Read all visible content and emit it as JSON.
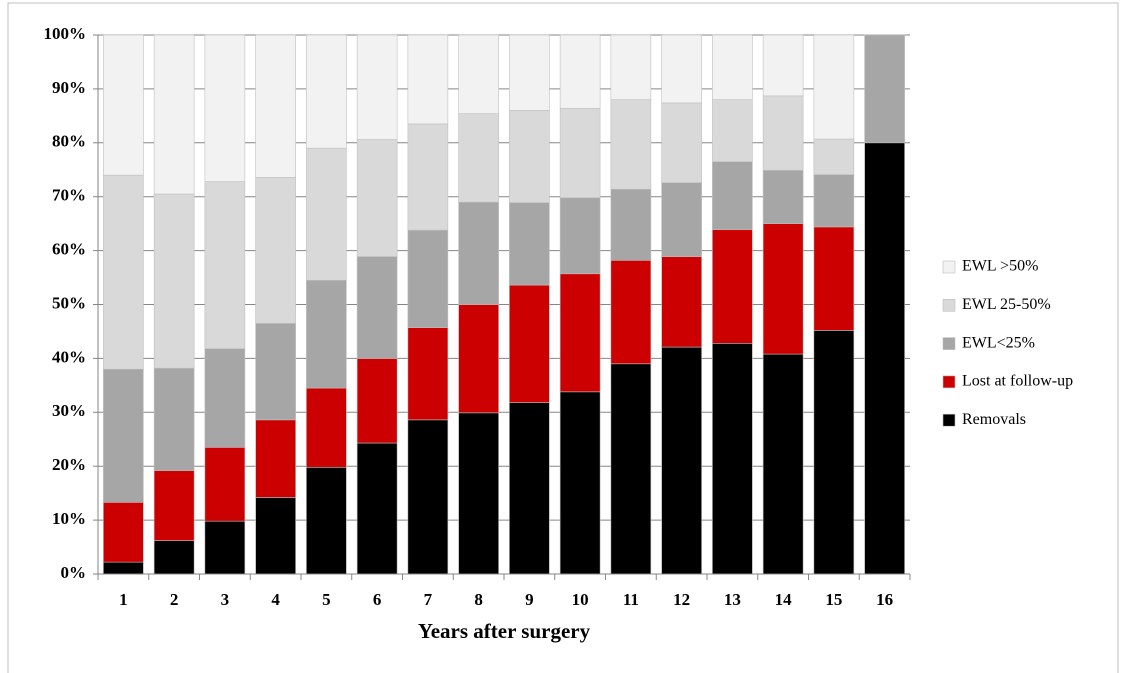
{
  "chart_data": {
    "type": "stacked_bar",
    "x_label": "Years after surgery",
    "categories": [
      "1",
      "2",
      "3",
      "4",
      "5",
      "6",
      "7",
      "8",
      "9",
      "10",
      "11",
      "12",
      "13",
      "14",
      "15",
      "16"
    ],
    "series": [
      {
        "name": "Removals",
        "color": "#000000",
        "values": [
          2.2,
          6.2,
          9.8,
          14.2,
          19.8,
          24.3,
          28.6,
          29.9,
          31.8,
          33.8,
          39,
          42.1,
          42.8,
          40.8,
          45.2,
          80
        ]
      },
      {
        "name": "Lost at follow-up",
        "color": "#cc0000",
        "values": [
          11.1,
          13,
          13.7,
          14.4,
          14.7,
          15.7,
          17.1,
          20.1,
          21.8,
          21.9,
          19.2,
          16.8,
          21.1,
          24.2,
          19.2,
          0
        ]
      },
      {
        "name": "EWL<25%",
        "color": "#a6a6a6",
        "values": [
          24.7,
          19,
          18.3,
          17.9,
          20,
          18.9,
          18.1,
          19,
          15.3,
          14.1,
          13.2,
          13.7,
          12.6,
          9.9,
          9.7,
          20
        ]
      },
      {
        "name": "EWL 25-50%",
        "color": "#d9d9d9",
        "values": [
          36,
          32.3,
          31,
          27.1,
          24.5,
          21.7,
          19.7,
          16.4,
          17.1,
          16.6,
          16.6,
          14.8,
          11.5,
          13.8,
          6.6,
          0
        ]
      },
      {
        "name": "EWL >50%",
        "color": "#f2f2f2",
        "values": [
          26,
          29.5,
          27.2,
          26.4,
          21,
          19.4,
          16.5,
          14.6,
          14,
          13.6,
          12,
          12.6,
          12,
          11.3,
          19.3,
          0
        ]
      }
    ],
    "ylim": [
      0,
      100
    ],
    "yticks": [
      {
        "value": 0,
        "label": "0%"
      },
      {
        "value": 10,
        "label": "10%"
      },
      {
        "value": 20,
        "label": "20%"
      },
      {
        "value": 30,
        "label": "30%"
      },
      {
        "value": 40,
        "label": "40%"
      },
      {
        "value": 50,
        "label": "50%"
      },
      {
        "value": 60,
        "label": "60%"
      },
      {
        "value": 70,
        "label": "70%"
      },
      {
        "value": 80,
        "label": "80%"
      },
      {
        "value": 90,
        "label": "90%"
      },
      {
        "value": 100,
        "label": "100%"
      }
    ],
    "grid": true,
    "legend": "right"
  }
}
